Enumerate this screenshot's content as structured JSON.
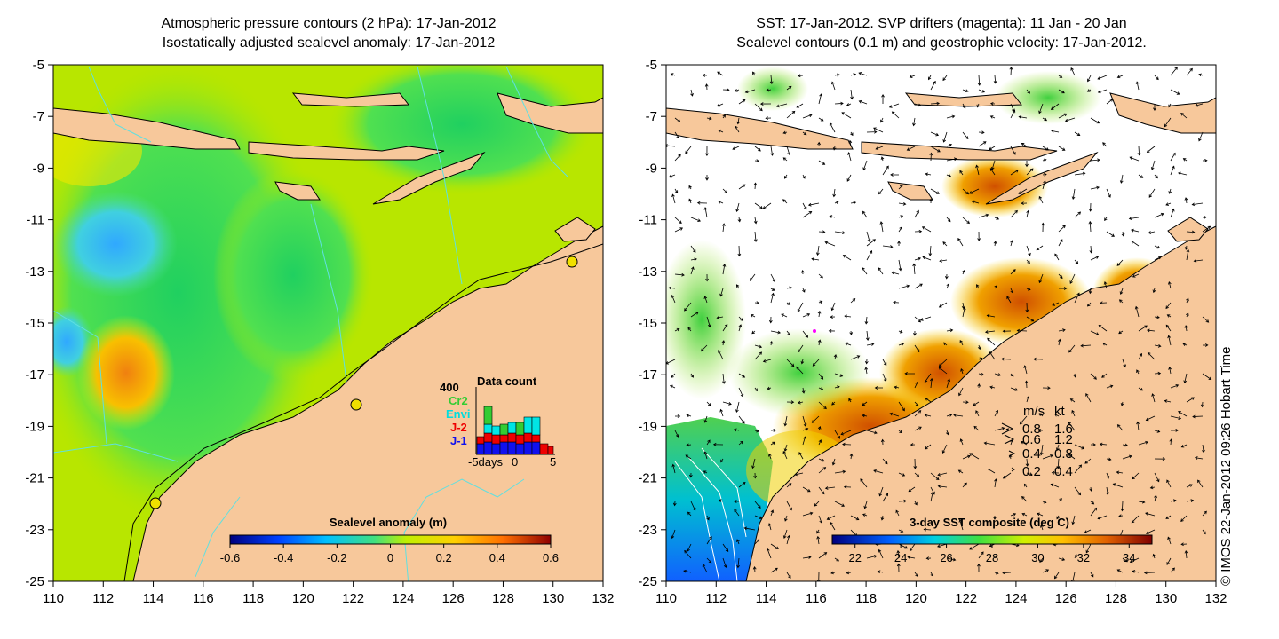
{
  "left_panel": {
    "title_line1": "Atmospheric pressure contours (2 hPa): 17-Jan-2012",
    "title_line2": "Isostatically adjusted sealevel anomaly: 17-Jan-2012",
    "colorbar": {
      "title": "Sealevel anomaly (m)",
      "ticks": [
        "-0.6",
        "-0.4",
        "-0.2",
        "0",
        "0.2",
        "0.4",
        "0.6"
      ],
      "range": [
        -0.6,
        0.6
      ]
    },
    "data_count": {
      "title": "Data count",
      "y_max_label": "400",
      "legend": [
        {
          "label": "Cr2",
          "color": "#33cc33"
        },
        {
          "label": "Envi",
          "color": "#00e5e5"
        },
        {
          "label": "J-2",
          "color": "#ee0000"
        },
        {
          "label": "J-1",
          "color": "#1010ee"
        }
      ],
      "x_labels": [
        "-5days",
        "0",
        "5"
      ]
    }
  },
  "right_panel": {
    "title_line1": "SST: 17-Jan-2012. SVP drifters (magenta): 11 Jan - 20 Jan",
    "title_line2": "Sealevel contours (0.1 m) and geostrophic velocity: 17-Jan-2012.",
    "colorbar": {
      "title": "3-day SST composite (deg C)",
      "ticks": [
        "22",
        "24",
        "26",
        "28",
        "30",
        "32",
        "34"
      ],
      "range": [
        21,
        35
      ]
    },
    "velocity_legend": {
      "header_ms": "m/s",
      "header_kt": "kt",
      "rows": [
        {
          "ms": "0.8",
          "kt": "1.6"
        },
        {
          "ms": "0.6",
          "kt": "1.2"
        },
        {
          "ms": "0.4",
          "kt": "0.8"
        },
        {
          "ms": "0.2",
          "kt": "0.4"
        }
      ]
    }
  },
  "axes": {
    "x_ticks": [
      "110",
      "112",
      "114",
      "116",
      "118",
      "120",
      "122",
      "124",
      "126",
      "128",
      "130",
      "132"
    ],
    "y_ticks": [
      "-5",
      "-7",
      "-9",
      "-11",
      "-13",
      "-15",
      "-17",
      "-19",
      "-21",
      "-23",
      "-25"
    ]
  },
  "credit": "© IMOS 22-Jan-2012 09:26 Hobart Time",
  "colors": {
    "land": "#f7c89b",
    "ocean_base_left": "#b8e600",
    "ocean_base_right": "#ffffff"
  }
}
